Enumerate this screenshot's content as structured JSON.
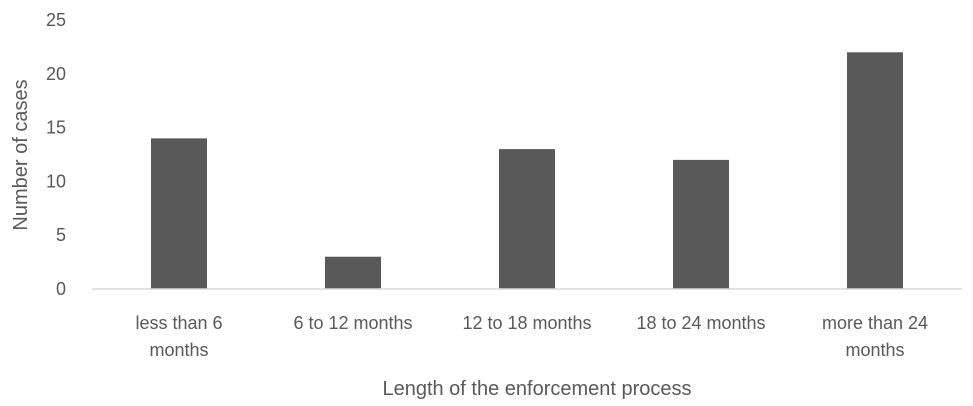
{
  "chart_data": {
    "type": "bar",
    "categories": [
      [
        "less than 6",
        "months"
      ],
      [
        "6 to 12 months"
      ],
      [
        "12 to 18 months"
      ],
      [
        "18 to 24 months"
      ],
      [
        "more than 24",
        "months"
      ]
    ],
    "values": [
      14,
      3,
      13,
      12,
      22
    ],
    "title": "",
    "xlabel": "Length of the enforcement process",
    "ylabel": "Number of cases",
    "ylim": [
      0,
      25
    ],
    "yticks": [
      0,
      5,
      10,
      15,
      20,
      25
    ],
    "grid": false,
    "legend": "none",
    "bar_color": "#595959",
    "axis_color": "#d9d9d9",
    "text_color": "#595959"
  }
}
